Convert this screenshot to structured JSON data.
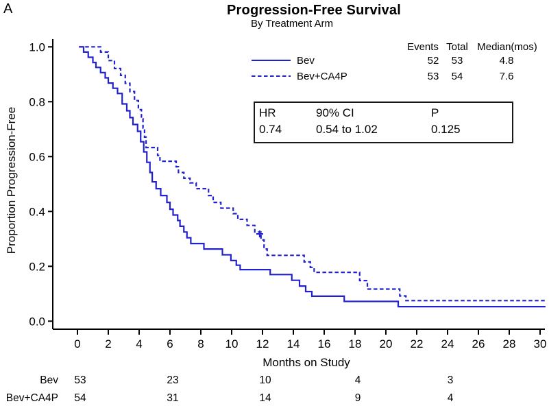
{
  "figure_label": "A",
  "title": "Progression-Free Survival",
  "subtitle": "By Treatment Arm",
  "axes": {
    "x_label": "Months on Study",
    "y_label": "Proportion Progression-Free"
  },
  "legend": {
    "header": {
      "events": "Events",
      "total": "Total",
      "median": "Median(mos)"
    },
    "rows": [
      {
        "label": "Bev",
        "line_style": "solid",
        "events": "52",
        "total": "53",
        "median": "4.8"
      },
      {
        "label": "Bev+CA4P",
        "line_style": "dashed",
        "events": "53",
        "total": "54",
        "median": "7.6"
      }
    ]
  },
  "stats_box": {
    "hr_label": "HR",
    "ci_label": "90% CI",
    "p_label": "P",
    "hr_value": "0.74",
    "ci_value": "0.54 to 1.02",
    "p_value": "0.125"
  },
  "risk_table": {
    "times": [
      0,
      6,
      12,
      18,
      24
    ],
    "rows": [
      {
        "label": "Bev",
        "counts": [
          "53",
          "23",
          "10",
          "4",
          "3"
        ]
      },
      {
        "label": "Bev+CA4P",
        "counts": [
          "54",
          "31",
          "14",
          "9",
          "4"
        ]
      }
    ]
  },
  "chart_data": {
    "type": "line",
    "subtype": "kaplan-meier-step",
    "title": "Progression-Free Survival",
    "subtitle": "By Treatment Arm",
    "xlabel": "Months on Study",
    "ylabel": "Proportion Progression-Free",
    "xlim": [
      0,
      30
    ],
    "ylim": [
      0.0,
      1.0
    ],
    "grid": false,
    "legend_position": "top-center",
    "x_ticks": [
      0,
      2,
      4,
      6,
      8,
      10,
      12,
      14,
      16,
      18,
      20,
      22,
      24,
      26,
      28,
      30
    ],
    "x_tick_labels": [
      "0",
      "2",
      "4",
      "6",
      "8",
      "10",
      "12",
      "14",
      "16",
      "18",
      "20",
      "22",
      "24",
      "26",
      "28",
      "30"
    ],
    "y_ticks": [
      0.0,
      0.2,
      0.4,
      0.6,
      0.8,
      1.0
    ],
    "y_tick_labels": [
      "0.0",
      "0.2",
      "0.4",
      "0.6",
      "0.8",
      "1.0"
    ],
    "line_color": "#2222cc",
    "axis_color": "#000000",
    "series": [
      {
        "name": "Bev",
        "style": "solid",
        "events": 52,
        "total": 53,
        "median_months": 4.8,
        "points": [
          [
            0.1,
            1.0
          ],
          [
            0.4,
            0.981
          ],
          [
            0.7,
            0.962
          ],
          [
            1.0,
            0.943
          ],
          [
            1.2,
            0.925
          ],
          [
            1.5,
            0.906
          ],
          [
            1.8,
            0.887
          ],
          [
            2.0,
            0.868
          ],
          [
            2.3,
            0.849
          ],
          [
            2.6,
            0.83
          ],
          [
            2.9,
            0.792
          ],
          [
            3.2,
            0.767
          ],
          [
            3.4,
            0.742
          ],
          [
            3.6,
            0.717
          ],
          [
            3.9,
            0.692
          ],
          [
            4.1,
            0.654
          ],
          [
            4.3,
            0.617
          ],
          [
            4.5,
            0.579
          ],
          [
            4.7,
            0.542
          ],
          [
            4.85,
            0.508
          ],
          [
            5.1,
            0.483
          ],
          [
            5.4,
            0.458
          ],
          [
            5.8,
            0.433
          ],
          [
            6.0,
            0.408
          ],
          [
            6.2,
            0.387
          ],
          [
            6.5,
            0.367
          ],
          [
            6.65,
            0.346
          ],
          [
            6.9,
            0.325
          ],
          [
            7.1,
            0.304
          ],
          [
            7.35,
            0.283
          ],
          [
            8.2,
            0.263
          ],
          [
            9.4,
            0.242
          ],
          [
            9.95,
            0.221
          ],
          [
            10.3,
            0.204
          ],
          [
            10.55,
            0.188
          ],
          [
            12.5,
            0.17
          ],
          [
            13.9,
            0.149
          ],
          [
            14.4,
            0.128
          ],
          [
            14.8,
            0.108
          ],
          [
            15.2,
            0.091
          ],
          [
            17.3,
            0.072
          ],
          [
            20.8,
            0.053
          ],
          [
            30.35,
            0.053
          ]
        ]
      },
      {
        "name": "Bev+CA4P",
        "style": "dashed",
        "events": 53,
        "total": 54,
        "median_months": 7.6,
        "points": [
          [
            0.1,
            1.0
          ],
          [
            1.5,
            0.981
          ],
          [
            2.0,
            0.95
          ],
          [
            2.4,
            0.921
          ],
          [
            2.8,
            0.896
          ],
          [
            3.1,
            0.867
          ],
          [
            3.4,
            0.837
          ],
          [
            3.7,
            0.804
          ],
          [
            3.95,
            0.771
          ],
          [
            4.15,
            0.738
          ],
          [
            4.25,
            0.704
          ],
          [
            4.35,
            0.671
          ],
          [
            4.45,
            0.633
          ],
          [
            5.2,
            0.604
          ],
          [
            5.35,
            0.583
          ],
          [
            6.4,
            0.563
          ],
          [
            6.55,
            0.542
          ],
          [
            6.9,
            0.521
          ],
          [
            7.3,
            0.504
          ],
          [
            7.7,
            0.483
          ],
          [
            8.5,
            0.458
          ],
          [
            8.8,
            0.433
          ],
          [
            9.3,
            0.412
          ],
          [
            10.1,
            0.392
          ],
          [
            10.4,
            0.371
          ],
          [
            11.0,
            0.349
          ],
          [
            11.5,
            0.325
          ],
          [
            11.9,
            0.296
          ],
          [
            12.1,
            0.263
          ],
          [
            12.3,
            0.24
          ],
          [
            14.7,
            0.216
          ],
          [
            15.1,
            0.196
          ],
          [
            15.35,
            0.178
          ],
          [
            18.3,
            0.148
          ],
          [
            18.8,
            0.117
          ],
          [
            20.9,
            0.092
          ],
          [
            21.3,
            0.075
          ],
          [
            30.45,
            0.075
          ]
        ]
      }
    ],
    "censor_marks": [
      {
        "series": "Bev+CA4P",
        "x": 11.82,
        "y": 0.318
      }
    ],
    "stats": {
      "hr": 0.74,
      "ci_90": [
        0.54,
        1.02
      ],
      "p": 0.125
    }
  }
}
